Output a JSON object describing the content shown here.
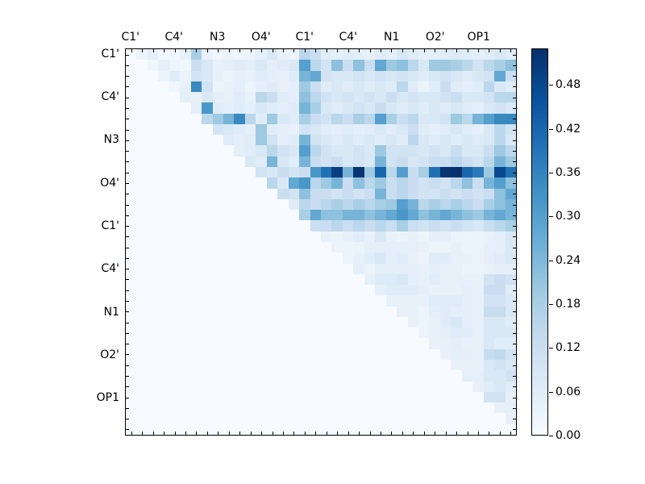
{
  "figure": {
    "background": "#ffffff",
    "plot_border_color": "#000000",
    "tick_color": "#000000",
    "label_color": "#000000"
  },
  "chart_data": {
    "type": "heatmap",
    "title": "",
    "xlabel": "",
    "ylabel": "",
    "grid_size": 36,
    "label_every_n_cells": 4,
    "x_tick_labels": [
      "C1'",
      "C4'",
      "N3",
      "O4'",
      "C1'",
      "C4'",
      "N1",
      "O2'",
      "OP1"
    ],
    "y_tick_labels": [
      "C1'",
      "C4'",
      "N3",
      "O4'",
      "C1'",
      "C4'",
      "N1",
      "O2'",
      "OP1"
    ],
    "colormap": "Blues",
    "colormap_stops": [
      "#f7fbff",
      "#deebf7",
      "#c6dbef",
      "#9ecae1",
      "#6baed6",
      "#4292c6",
      "#2171b5",
      "#08519c",
      "#08306b"
    ],
    "vmin": 0.0,
    "vmax": 0.53,
    "colorbar": {
      "position": "right",
      "tick_values": [
        0.0,
        0.06,
        0.12,
        0.18,
        0.24,
        0.3,
        0.36,
        0.42,
        0.48
      ],
      "tick_labels": [
        "0.00",
        "0.06",
        "0.12",
        "0.18",
        "0.24",
        "0.30",
        "0.36",
        "0.42",
        "0.48"
      ]
    },
    "matrix": [
      [
        0,
        0.03,
        0.05,
        0.02,
        0.02,
        0.04,
        0.18,
        0.04,
        0.02,
        0.03,
        0.02,
        0.03,
        0.05,
        0.08,
        0.04,
        0.03,
        0.15,
        0.12,
        0.06,
        0.05,
        0.06,
        0.05,
        0.04,
        0.06,
        0.05,
        0.08,
        0.06,
        0.05,
        0.05,
        0.06,
        0.07,
        0.06,
        0.05,
        0.06,
        0.08,
        0.06
      ],
      [
        0,
        0,
        0.02,
        0.05,
        0.03,
        0.02,
        0.12,
        0.08,
        0.04,
        0.05,
        0.06,
        0.05,
        0.08,
        0.05,
        0.06,
        0.08,
        0.3,
        0.15,
        0.1,
        0.22,
        0.12,
        0.22,
        0.12,
        0.28,
        0.2,
        0.22,
        0.15,
        0.08,
        0.2,
        0.2,
        0.18,
        0.15,
        0.1,
        0.15,
        0.18,
        0.22
      ],
      [
        0,
        0,
        0,
        0.03,
        0.06,
        0.03,
        0.1,
        0.08,
        0.04,
        0.03,
        0.05,
        0.04,
        0.06,
        0.05,
        0.04,
        0.06,
        0.25,
        0.28,
        0.1,
        0.08,
        0.08,
        0.1,
        0.08,
        0.1,
        0.08,
        0.1,
        0.08,
        0.06,
        0.08,
        0.1,
        0.08,
        0.06,
        0.08,
        0.1,
        0.28,
        0.12
      ],
      [
        0,
        0,
        0,
        0,
        0.02,
        0.04,
        0.35,
        0.1,
        0.03,
        0.04,
        0.05,
        0.03,
        0.05,
        0.06,
        0.04,
        0.05,
        0.2,
        0.12,
        0.06,
        0.08,
        0.06,
        0.08,
        0.06,
        0.08,
        0.06,
        0.15,
        0.06,
        0.03,
        0.06,
        0.12,
        0.06,
        0.05,
        0.06,
        0.15,
        0.08,
        0.06
      ],
      [
        0,
        0,
        0,
        0,
        0,
        0.05,
        0.04,
        0.08,
        0.05,
        0.04,
        0.06,
        0.04,
        0.15,
        0.12,
        0.06,
        0.05,
        0.22,
        0.15,
        0.1,
        0.08,
        0.1,
        0.08,
        0.1,
        0.08,
        0.12,
        0.08,
        0.1,
        0.08,
        0.08,
        0.1,
        0.12,
        0.08,
        0.08,
        0.1,
        0.15,
        0.15
      ],
      [
        0,
        0,
        0,
        0,
        0,
        0,
        0.05,
        0.32,
        0.06,
        0.05,
        0.06,
        0.05,
        0.08,
        0.06,
        0.05,
        0.06,
        0.25,
        0.18,
        0.08,
        0.06,
        0.08,
        0.1,
        0.08,
        0.12,
        0.08,
        0.06,
        0.08,
        0.06,
        0.08,
        0.06,
        0.08,
        0.06,
        0.05,
        0.08,
        0.1,
        0.08
      ],
      [
        0,
        0,
        0,
        0,
        0,
        0,
        0,
        0.15,
        0.2,
        0.25,
        0.35,
        0.15,
        0.06,
        0.2,
        0.08,
        0.06,
        0.18,
        0.12,
        0.1,
        0.15,
        0.12,
        0.18,
        0.15,
        0.3,
        0.18,
        0.12,
        0.15,
        0.08,
        0.08,
        0.1,
        0.2,
        0.15,
        0.25,
        0.3,
        0.35,
        0.35
      ],
      [
        0,
        0,
        0,
        0,
        0,
        0,
        0,
        0,
        0.1,
        0.08,
        0.06,
        0.05,
        0.2,
        0.06,
        0.05,
        0.04,
        0.1,
        0.08,
        0.06,
        0.05,
        0.06,
        0.05,
        0.06,
        0.08,
        0.06,
        0.08,
        0.12,
        0.06,
        0.05,
        0.06,
        0.08,
        0.06,
        0.05,
        0.08,
        0.15,
        0.1
      ],
      [
        0,
        0,
        0,
        0,
        0,
        0,
        0,
        0,
        0,
        0.06,
        0.05,
        0.06,
        0.2,
        0.1,
        0.05,
        0.06,
        0.25,
        0.1,
        0.08,
        0.06,
        0.08,
        0.06,
        0.08,
        0.06,
        0.08,
        0.06,
        0.15,
        0.08,
        0.06,
        0.08,
        0.06,
        0.08,
        0.06,
        0.08,
        0.15,
        0.08
      ],
      [
        0,
        0,
        0,
        0,
        0,
        0,
        0,
        0,
        0,
        0,
        0.05,
        0.06,
        0.08,
        0.15,
        0.1,
        0.08,
        0.3,
        0.15,
        0.1,
        0.08,
        0.08,
        0.1,
        0.08,
        0.2,
        0.1,
        0.1,
        0.1,
        0.08,
        0.1,
        0.08,
        0.12,
        0.08,
        0.08,
        0.12,
        0.2,
        0.15
      ],
      [
        0,
        0,
        0,
        0,
        0,
        0,
        0,
        0,
        0,
        0,
        0,
        0.08,
        0.06,
        0.25,
        0.08,
        0.06,
        0.25,
        0.12,
        0.1,
        0.12,
        0.08,
        0.1,
        0.08,
        0.25,
        0.1,
        0.12,
        0.08,
        0.1,
        0.12,
        0.12,
        0.15,
        0.12,
        0.1,
        0.15,
        0.25,
        0.2
      ],
      [
        0,
        0,
        0,
        0,
        0,
        0,
        0,
        0,
        0,
        0,
        0,
        0,
        0.1,
        0.08,
        0.12,
        0.1,
        0.12,
        0.32,
        0.4,
        0.5,
        0.25,
        0.52,
        0.2,
        0.42,
        0.15,
        0.3,
        0.12,
        0.18,
        0.4,
        0.52,
        0.53,
        0.42,
        0.38,
        0.2,
        0.48,
        0.4
      ],
      [
        0,
        0,
        0,
        0,
        0,
        0,
        0,
        0,
        0,
        0,
        0,
        0,
        0,
        0.15,
        0.08,
        0.28,
        0.32,
        0.15,
        0.2,
        0.25,
        0.12,
        0.22,
        0.15,
        0.2,
        0.12,
        0.15,
        0.12,
        0.1,
        0.12,
        0.1,
        0.15,
        0.22,
        0.12,
        0.25,
        0.3,
        0.22
      ],
      [
        0,
        0,
        0,
        0,
        0,
        0,
        0,
        0,
        0,
        0,
        0,
        0,
        0,
        0,
        0.12,
        0.1,
        0.22,
        0.12,
        0.12,
        0.1,
        0.12,
        0.1,
        0.12,
        0.25,
        0.12,
        0.15,
        0.12,
        0.1,
        0.1,
        0.12,
        0.1,
        0.12,
        0.1,
        0.12,
        0.22,
        0.28
      ],
      [
        0,
        0,
        0,
        0,
        0,
        0,
        0,
        0,
        0,
        0,
        0,
        0,
        0,
        0,
        0,
        0.06,
        0.15,
        0.12,
        0.15,
        0.18,
        0.15,
        0.18,
        0.15,
        0.18,
        0.2,
        0.3,
        0.25,
        0.15,
        0.18,
        0.15,
        0.18,
        0.15,
        0.12,
        0.18,
        0.22,
        0.25
      ],
      [
        0,
        0,
        0,
        0,
        0,
        0,
        0,
        0,
        0,
        0,
        0,
        0,
        0,
        0,
        0,
        0,
        0.18,
        0.28,
        0.22,
        0.22,
        0.25,
        0.25,
        0.22,
        0.25,
        0.28,
        0.32,
        0.28,
        0.22,
        0.25,
        0.28,
        0.25,
        0.22,
        0.2,
        0.25,
        0.28,
        0.25
      ],
      [
        0,
        0,
        0,
        0,
        0,
        0,
        0,
        0,
        0,
        0,
        0,
        0,
        0,
        0,
        0,
        0,
        0,
        0.12,
        0.12,
        0.15,
        0.12,
        0.15,
        0.12,
        0.15,
        0.12,
        0.18,
        0.12,
        0.1,
        0.12,
        0.1,
        0.12,
        0.1,
        0.08,
        0.12,
        0.15,
        0.18
      ],
      [
        0,
        0,
        0,
        0,
        0,
        0,
        0,
        0,
        0,
        0,
        0,
        0,
        0,
        0,
        0,
        0,
        0,
        0,
        0.04,
        0.03,
        0.04,
        0.06,
        0.04,
        0.08,
        0.04,
        0.03,
        0.04,
        0.03,
        0.05,
        0.05,
        0.03,
        0.03,
        0.03,
        0.04,
        0.05,
        0.08
      ],
      [
        0,
        0,
        0,
        0,
        0,
        0,
        0,
        0,
        0,
        0,
        0,
        0,
        0,
        0,
        0,
        0,
        0,
        0,
        0,
        0.03,
        0.03,
        0.03,
        0.05,
        0.05,
        0.05,
        0.05,
        0.05,
        0.04,
        0.03,
        0.03,
        0.04,
        0.03,
        0.03,
        0.05,
        0.05,
        0.08
      ],
      [
        0,
        0,
        0,
        0,
        0,
        0,
        0,
        0,
        0,
        0,
        0,
        0,
        0,
        0,
        0,
        0,
        0,
        0,
        0,
        0,
        0.03,
        0.04,
        0.06,
        0.08,
        0.05,
        0.06,
        0.04,
        0.03,
        0.06,
        0.06,
        0.04,
        0.04,
        0.03,
        0.05,
        0.06,
        0.08
      ],
      [
        0,
        0,
        0,
        0,
        0,
        0,
        0,
        0,
        0,
        0,
        0,
        0,
        0,
        0,
        0,
        0,
        0,
        0,
        0,
        0,
        0,
        0.05,
        0.03,
        0.05,
        0.05,
        0.05,
        0.05,
        0.04,
        0.05,
        0.04,
        0.04,
        0.03,
        0.03,
        0.04,
        0.05,
        0.05
      ],
      [
        0,
        0,
        0,
        0,
        0,
        0,
        0,
        0,
        0,
        0,
        0,
        0,
        0,
        0,
        0,
        0,
        0,
        0,
        0,
        0,
        0,
        0,
        0.04,
        0.07,
        0.07,
        0.08,
        0.05,
        0.04,
        0.06,
        0.04,
        0.04,
        0.04,
        0.04,
        0.1,
        0.12,
        0.1
      ],
      [
        0,
        0,
        0,
        0,
        0,
        0,
        0,
        0,
        0,
        0,
        0,
        0,
        0,
        0,
        0,
        0,
        0,
        0,
        0,
        0,
        0,
        0,
        0,
        0.05,
        0.06,
        0.06,
        0.06,
        0.05,
        0.04,
        0.04,
        0.04,
        0.05,
        0.04,
        0.12,
        0.12,
        0.06
      ],
      [
        0,
        0,
        0,
        0,
        0,
        0,
        0,
        0,
        0,
        0,
        0,
        0,
        0,
        0,
        0,
        0,
        0,
        0,
        0,
        0,
        0,
        0,
        0,
        0,
        0.04,
        0.04,
        0.04,
        0.04,
        0.06,
        0.06,
        0.06,
        0.05,
        0.04,
        0.1,
        0.1,
        0.08
      ],
      [
        0,
        0,
        0,
        0,
        0,
        0,
        0,
        0,
        0,
        0,
        0,
        0,
        0,
        0,
        0,
        0,
        0,
        0,
        0,
        0,
        0,
        0,
        0,
        0,
        0,
        0.04,
        0.04,
        0.03,
        0.05,
        0.06,
        0.05,
        0.05,
        0.04,
        0.13,
        0.13,
        0.08
      ],
      [
        0,
        0,
        0,
        0,
        0,
        0,
        0,
        0,
        0,
        0,
        0,
        0,
        0,
        0,
        0,
        0,
        0,
        0,
        0,
        0,
        0,
        0,
        0,
        0,
        0,
        0,
        0.04,
        0.03,
        0.04,
        0.06,
        0.08,
        0.05,
        0.04,
        0.08,
        0.08,
        0.06
      ],
      [
        0,
        0,
        0,
        0,
        0,
        0,
        0,
        0,
        0,
        0,
        0,
        0,
        0,
        0,
        0,
        0,
        0,
        0,
        0,
        0,
        0,
        0,
        0,
        0,
        0,
        0,
        0,
        0.03,
        0.04,
        0.05,
        0.06,
        0.06,
        0.04,
        0.08,
        0.08,
        0.08
      ],
      [
        0,
        0,
        0,
        0,
        0,
        0,
        0,
        0,
        0,
        0,
        0,
        0,
        0,
        0,
        0,
        0,
        0,
        0,
        0,
        0,
        0,
        0,
        0,
        0,
        0,
        0,
        0,
        0,
        0.04,
        0.04,
        0.05,
        0.04,
        0.04,
        0.08,
        0.06,
        0.06
      ],
      [
        0,
        0,
        0,
        0,
        0,
        0,
        0,
        0,
        0,
        0,
        0,
        0,
        0,
        0,
        0,
        0,
        0,
        0,
        0,
        0,
        0,
        0,
        0,
        0,
        0,
        0,
        0,
        0,
        0,
        0.04,
        0.05,
        0.05,
        0.04,
        0.13,
        0.14,
        0.1
      ],
      [
        0,
        0,
        0,
        0,
        0,
        0,
        0,
        0,
        0,
        0,
        0,
        0,
        0,
        0,
        0,
        0,
        0,
        0,
        0,
        0,
        0,
        0,
        0,
        0,
        0,
        0,
        0,
        0,
        0,
        0,
        0.04,
        0.04,
        0.04,
        0.08,
        0.1,
        0.08
      ],
      [
        0,
        0,
        0,
        0,
        0,
        0,
        0,
        0,
        0,
        0,
        0,
        0,
        0,
        0,
        0,
        0,
        0,
        0,
        0,
        0,
        0,
        0,
        0,
        0,
        0,
        0,
        0,
        0,
        0,
        0,
        0,
        0.05,
        0.05,
        0.08,
        0.08,
        0.1
      ],
      [
        0,
        0,
        0,
        0,
        0,
        0,
        0,
        0,
        0,
        0,
        0,
        0,
        0,
        0,
        0,
        0,
        0,
        0,
        0,
        0,
        0,
        0,
        0,
        0,
        0,
        0,
        0,
        0,
        0,
        0,
        0,
        0,
        0.04,
        0.06,
        0.08,
        0.06
      ],
      [
        0,
        0,
        0,
        0,
        0,
        0,
        0,
        0,
        0,
        0,
        0,
        0,
        0,
        0,
        0,
        0,
        0,
        0,
        0,
        0,
        0,
        0,
        0,
        0,
        0,
        0,
        0,
        0,
        0,
        0,
        0,
        0,
        0,
        0.1,
        0.1,
        0.04
      ],
      [
        0,
        0,
        0,
        0,
        0,
        0,
        0,
        0,
        0,
        0,
        0,
        0,
        0,
        0,
        0,
        0,
        0,
        0,
        0,
        0,
        0,
        0,
        0,
        0,
        0,
        0,
        0,
        0,
        0,
        0,
        0,
        0,
        0,
        0,
        0.04,
        0.05
      ],
      [
        0,
        0,
        0,
        0,
        0,
        0,
        0,
        0,
        0,
        0,
        0,
        0,
        0,
        0,
        0,
        0,
        0,
        0,
        0,
        0,
        0,
        0,
        0,
        0,
        0,
        0,
        0,
        0,
        0,
        0,
        0,
        0,
        0,
        0,
        0,
        0.04
      ],
      [
        0,
        0,
        0,
        0,
        0,
        0,
        0,
        0,
        0,
        0,
        0,
        0,
        0,
        0,
        0,
        0,
        0,
        0,
        0,
        0,
        0,
        0,
        0,
        0,
        0,
        0,
        0,
        0,
        0,
        0,
        0,
        0,
        0,
        0,
        0,
        0
      ]
    ]
  }
}
